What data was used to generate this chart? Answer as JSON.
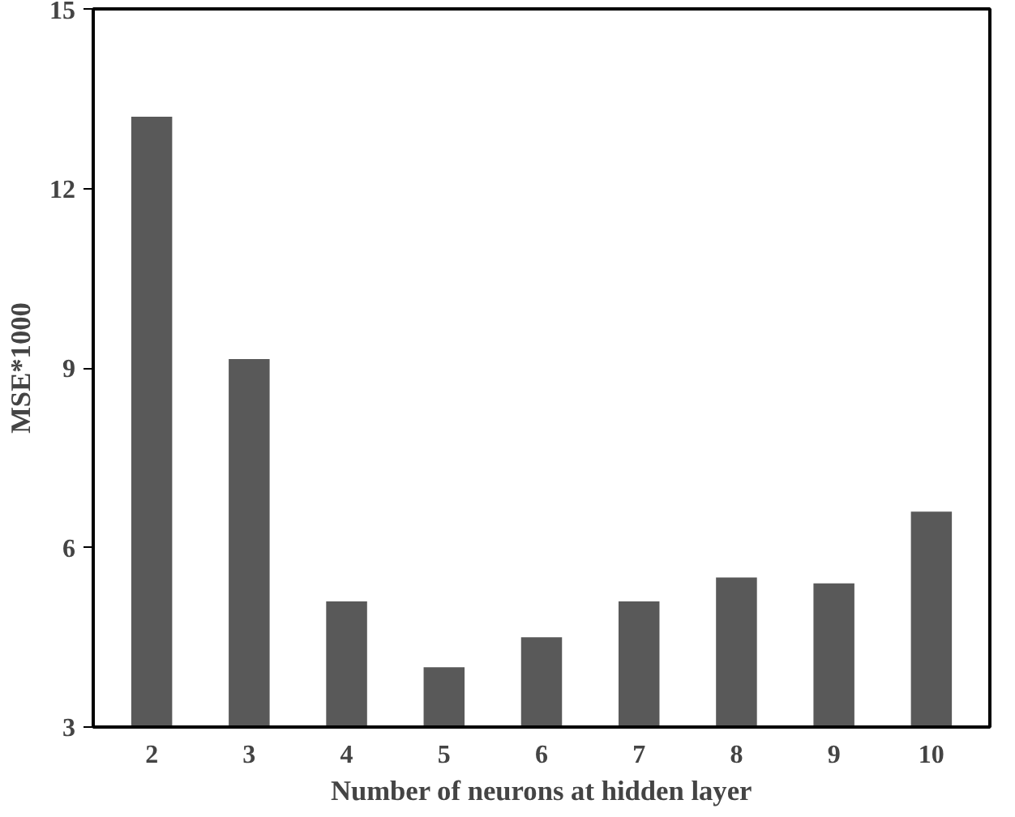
{
  "chart_data": {
    "type": "bar",
    "xlabel": "Number of neurons at hidden layer",
    "ylabel": "MSE*1000",
    "categories": [
      "2",
      "3",
      "4",
      "5",
      "6",
      "7",
      "8",
      "9",
      "10"
    ],
    "values": [
      13.2,
      9.15,
      5.1,
      4.0,
      4.5,
      5.1,
      5.5,
      5.4,
      6.6
    ],
    "color": "#595959",
    "ylim": [
      3,
      15
    ],
    "yticks": [
      3,
      6,
      9,
      12,
      15
    ],
    "grid": false
  }
}
